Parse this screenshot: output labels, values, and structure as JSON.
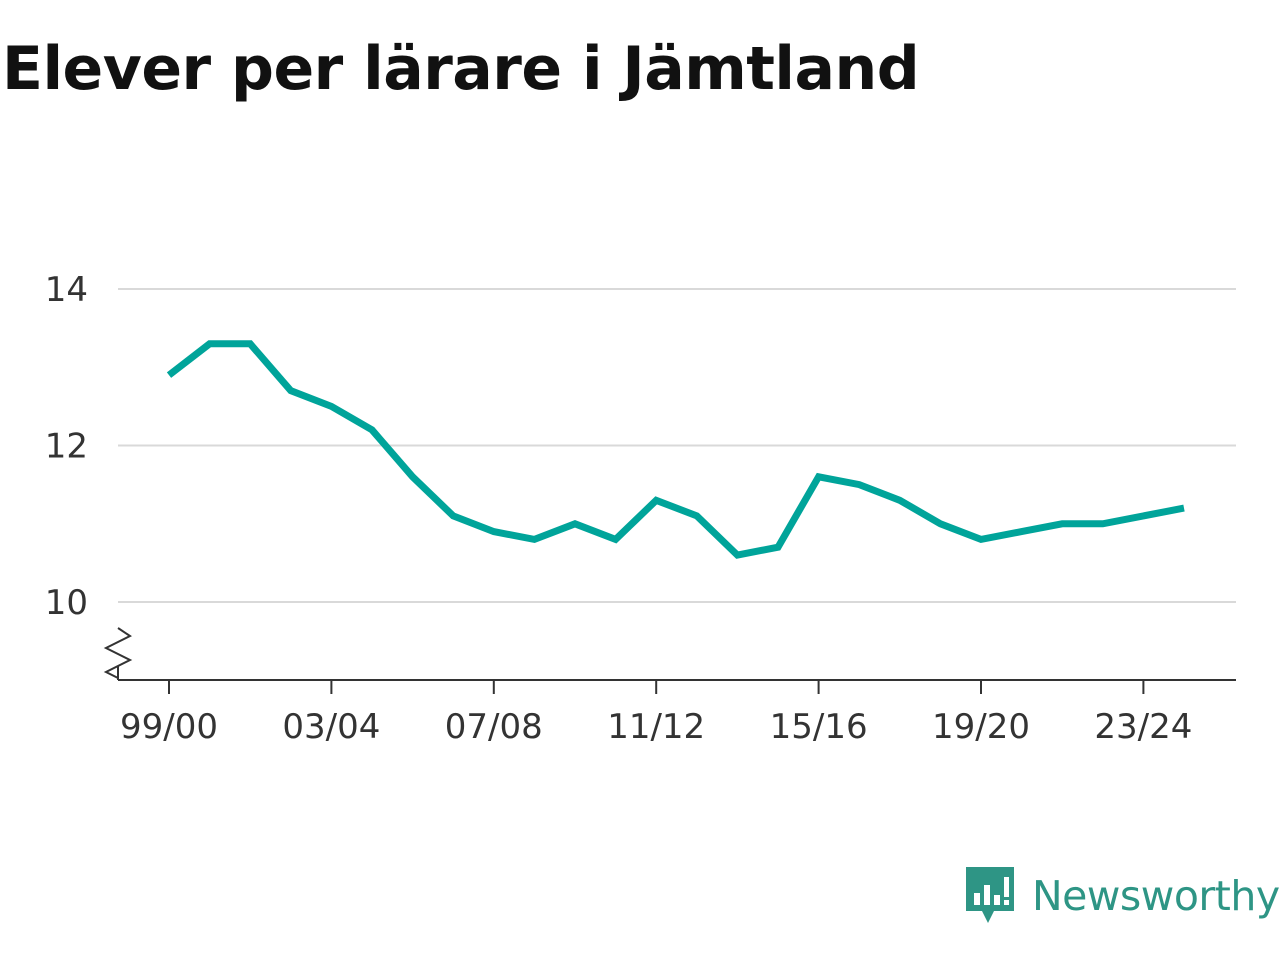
{
  "title": "Elever per lärare i Jämtland",
  "brand": {
    "name": "Newsworthy",
    "color": "#2e9585",
    "icon": "newsworthy-logo-icon"
  },
  "colors": {
    "line": "#00a49a",
    "grid": "#d9d9d9",
    "axis": "#333333"
  },
  "chart_data": {
    "type": "line",
    "title": "Elever per lärare i Jämtland",
    "xlabel": "",
    "ylabel": "",
    "ylim": [
      9,
      14
    ],
    "yticks": [
      10,
      12,
      14
    ],
    "y_axis_break": true,
    "grid": true,
    "x_tick_labels": [
      "99/00",
      "03/04",
      "07/08",
      "11/12",
      "15/16",
      "19/20",
      "23/24"
    ],
    "x_tick_indices": [
      0,
      4,
      8,
      12,
      16,
      20,
      24
    ],
    "series": [
      {
        "x": [
          "99/00",
          "00/01",
          "01/02",
          "02/03",
          "03/04",
          "04/05",
          "05/06",
          "06/07",
          "07/08",
          "08/09",
          "09/10",
          "10/11",
          "11/12",
          "12/13",
          "13/14",
          "14/15",
          "15/16",
          "16/17",
          "17/18",
          "18/19",
          "19/20",
          "20/21",
          "21/22",
          "22/23",
          "23/24",
          "24/25"
        ],
        "values": [
          12.9,
          13.3,
          13.3,
          12.7,
          12.5,
          12.2,
          11.6,
          11.1,
          10.9,
          10.8,
          11.0,
          10.8,
          11.3,
          11.1,
          10.6,
          10.7,
          11.6,
          11.5,
          11.3,
          11.0,
          10.8,
          10.9,
          11.0,
          11.0,
          11.1,
          11.2
        ]
      }
    ]
  }
}
